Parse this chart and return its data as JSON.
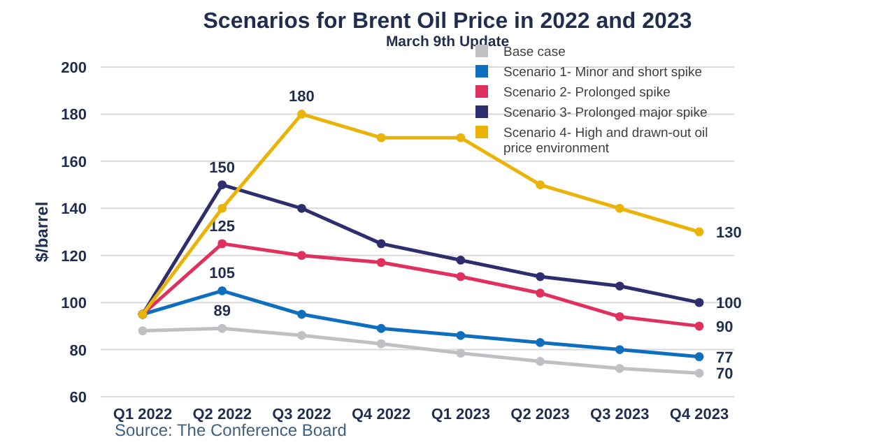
{
  "chart_data": {
    "type": "line",
    "title": "Scenarios for Brent Oil Price in 2022 and 2023",
    "subtitle": "March 9th Update",
    "ylabel": "$/barrel",
    "annotations": [
      "Source: The Conference Board"
    ],
    "categories": [
      "Q1 2022",
      "Q2 2022",
      "Q3 2022",
      "Q4 2022",
      "Q1 2023",
      "Q2 2023",
      "Q3 2023",
      "Q4 2023"
    ],
    "ylim": [
      60,
      200
    ],
    "yticks": [
      60,
      80,
      100,
      120,
      140,
      160,
      180,
      200
    ],
    "grid": "y",
    "legend": "top right",
    "marker": "circle",
    "line_style": "solid",
    "series": [
      {
        "name": "Base case",
        "color": "#bfbfc4",
        "values": [
          88,
          89,
          86,
          82.5,
          78.5,
          75,
          72,
          70
        ],
        "value_labels": [
          null,
          "89",
          null,
          null,
          null,
          null,
          null,
          "70"
        ]
      },
      {
        "name": "Scenario 1- Minor and short spike",
        "color": "#0f6fbf",
        "values": [
          95,
          105,
          95,
          89,
          86,
          83,
          80,
          77
        ],
        "value_labels": [
          null,
          "105",
          null,
          null,
          null,
          null,
          null,
          "77"
        ]
      },
      {
        "name": "Scenario 2- Prolonged spike",
        "color": "#e0305e",
        "values": [
          95,
          125,
          120,
          117,
          111,
          104,
          94,
          90
        ],
        "value_labels": [
          null,
          "125",
          null,
          null,
          null,
          null,
          null,
          "90"
        ]
      },
      {
        "name": "Scenario 3- Prolonged major spike",
        "color": "#2e2d6e",
        "values": [
          95,
          150,
          140,
          125,
          118,
          111,
          107,
          100
        ],
        "value_labels": [
          null,
          "150",
          null,
          null,
          null,
          null,
          null,
          "100"
        ]
      },
      {
        "name": "Scenario 4- High and drawn-out oil price environment",
        "color": "#eab308",
        "values": [
          95,
          140,
          180,
          170,
          170,
          150,
          140,
          130
        ],
        "value_labels": [
          null,
          null,
          "180",
          null,
          null,
          null,
          null,
          "130"
        ]
      }
    ]
  }
}
